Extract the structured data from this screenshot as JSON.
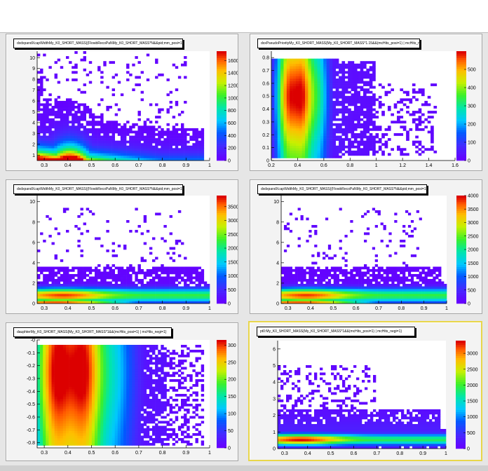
{
  "chart_data": [
    {
      "type": "heatmap",
      "title": "dxdxpandXcapWidthMy_K0_SHORT_MASS{(FlowbRecoPaNMy_K0_SHORT_MASS*N&&pid;mm_posi=1) | mdMBcs_negi=1}",
      "x_range": [
        0.27,
        1.0
      ],
      "y_range": [
        0.5,
        10.6
      ],
      "x_ticks": [
        "0.3",
        "0.4",
        "0.5",
        "0.6",
        "0.7",
        "0.8",
        "0.9",
        "1"
      ],
      "x_tick_values": [
        0.3,
        0.4,
        0.5,
        0.6,
        0.7,
        0.8,
        0.9,
        1.0
      ],
      "y_ticks": [
        "1",
        "2",
        "3",
        "4",
        "5",
        "6",
        "7",
        "8",
        "9",
        "10"
      ],
      "y_tick_values": [
        1,
        2,
        3,
        4,
        5,
        6,
        7,
        8,
        9,
        10
      ],
      "z_ticks": [
        "0",
        "200",
        "400",
        "600",
        "800",
        "1000",
        "1200",
        "1400",
        "1600"
      ],
      "z_tick_values": [
        0,
        200,
        400,
        600,
        800,
        1000,
        1200,
        1400,
        1600
      ],
      "z_max": 1750,
      "grid": false
    },
    {
      "type": "heatmap",
      "title": "dxxPseudoPriorityMy_K0_SHORT_MASS{My_K0_SHORT_MASS*1.15&&(mcHits_posi=1) | mcHits_negi=1}",
      "x_range": [
        0.2,
        1.6
      ],
      "y_range": [
        0.0,
        0.85
      ],
      "x_ticks": [
        "0.2",
        "0.4",
        "0.6",
        "0.8",
        "1",
        "1.2",
        "1.4",
        "1.6"
      ],
      "x_tick_values": [
        0.2,
        0.4,
        0.6,
        0.8,
        1.0,
        1.2,
        1.4,
        1.6
      ],
      "y_ticks": [
        "0",
        "0.1",
        "0.2",
        "0.3",
        "0.4",
        "0.5",
        "0.6",
        "0.7",
        "0.8"
      ],
      "y_tick_values": [
        0,
        0.1,
        0.2,
        0.3,
        0.4,
        0.5,
        0.6,
        0.7,
        0.8
      ],
      "z_ticks": [
        "0",
        "100",
        "200",
        "300",
        "400",
        "500"
      ],
      "z_tick_values": [
        0,
        100,
        200,
        300,
        400,
        500
      ],
      "z_max": 600,
      "grid": false
    },
    {
      "type": "heatmap",
      "title": "dxdxpandXcapWidthMy_K0_SHORT_MASS{(FlowbRecoPaNMy_K0_SHORT_MASS*N&&pid;mm_posi=1) | mdMBcs_negi=1}",
      "x_range": [
        0.27,
        1.0
      ],
      "y_range": [
        0.0,
        10.6
      ],
      "x_ticks": [
        "0.3",
        "0.4",
        "0.5",
        "0.6",
        "0.7",
        "0.8",
        "0.9",
        "1"
      ],
      "x_tick_values": [
        0.3,
        0.4,
        0.5,
        0.6,
        0.7,
        0.8,
        0.9,
        1.0
      ],
      "y_ticks": [
        "0",
        "2",
        "4",
        "6",
        "8",
        "10"
      ],
      "y_tick_values": [
        0,
        2,
        4,
        6,
        8,
        10
      ],
      "z_ticks": [
        "0",
        "500",
        "1000",
        "1500",
        "2000",
        "2500",
        "3000",
        "3500"
      ],
      "z_tick_values": [
        0,
        500,
        1000,
        1500,
        2000,
        2500,
        3000,
        3500
      ],
      "z_max": 3900,
      "grid": false
    },
    {
      "type": "heatmap",
      "title": "dxdxpandXcapWidthMy_K0_SHORT_MASS{(FlowbRecoPaNMy_K0_SHORT_MASS*N&&pid;mm_posi=1) | mdMBcs_negi=1}",
      "x_range": [
        0.27,
        1.0
      ],
      "y_range": [
        0.0,
        10.6
      ],
      "x_ticks": [
        "0.3",
        "0.4",
        "0.5",
        "0.6",
        "0.7",
        "0.8",
        "0.9",
        "1"
      ],
      "x_tick_values": [
        0.3,
        0.4,
        0.5,
        0.6,
        0.7,
        0.8,
        0.9,
        1.0
      ],
      "y_ticks": [
        "0",
        "2",
        "4",
        "6",
        "8",
        "10"
      ],
      "y_tick_values": [
        0,
        2,
        4,
        6,
        8,
        10
      ],
      "z_ticks": [
        "0",
        "500",
        "1000",
        "1500",
        "2000",
        "2500",
        "3000",
        "3500",
        "4000"
      ],
      "z_tick_values": [
        0,
        500,
        1000,
        1500,
        2000,
        2500,
        3000,
        3500,
        4000
      ],
      "z_max": 4000,
      "grid": false
    },
    {
      "type": "heatmap",
      "title": "dauphterMy_K0_SHORT_MASS{My_K0_SHORT_MASS*1&&(mcHits_posi=1) | mcHits_negi=1}",
      "x_range": [
        0.27,
        1.0
      ],
      "y_range": [
        -0.84,
        0.0
      ],
      "x_ticks": [
        "0.3",
        "0.4",
        "0.5",
        "0.6",
        "0.7",
        "0.8",
        "0.9",
        "1"
      ],
      "x_tick_values": [
        0.3,
        0.4,
        0.5,
        0.6,
        0.7,
        0.8,
        0.9,
        1.0
      ],
      "y_ticks": [
        "-0",
        "-0.1",
        "-0.2",
        "-0.3",
        "-0.4",
        "-0.5",
        "-0.6",
        "-0.7",
        "-0.8"
      ],
      "y_tick_values": [
        0,
        -0.1,
        -0.2,
        -0.3,
        -0.4,
        -0.5,
        -0.6,
        -0.7,
        -0.8
      ],
      "z_ticks": [
        "0",
        "50",
        "100",
        "150",
        "200",
        "250",
        "300"
      ],
      "z_tick_values": [
        0,
        50,
        100,
        150,
        200,
        250,
        300
      ],
      "z_max": 315,
      "grid": false
    },
    {
      "type": "heatmap",
      "title": "pt0:My_K0_SHORT_MASS{My_K0_SHORT_MASS*1&&(mcHits_posi=1) | mcHits_negi=1}",
      "x_range": [
        0.27,
        1.0
      ],
      "y_range": [
        0.0,
        6.5
      ],
      "x_ticks": [
        "0.3",
        "0.4",
        "0.5",
        "0.6",
        "0.7",
        "0.8",
        "0.9",
        "1"
      ],
      "x_tick_values": [
        0.3,
        0.4,
        0.5,
        0.6,
        0.7,
        0.8,
        0.9,
        1.0
      ],
      "y_ticks": [
        "0",
        "1",
        "2",
        "3",
        "4",
        "5",
        "6"
      ],
      "y_tick_values": [
        0,
        1,
        2,
        3,
        4,
        5,
        6
      ],
      "z_ticks": [
        "0",
        "500",
        "1000",
        "1500",
        "2000",
        "2500",
        "3000"
      ],
      "z_tick_values": [
        0,
        500,
        1000,
        1500,
        2000,
        2500,
        3000
      ],
      "z_max": 3400,
      "grid": false
    }
  ]
}
